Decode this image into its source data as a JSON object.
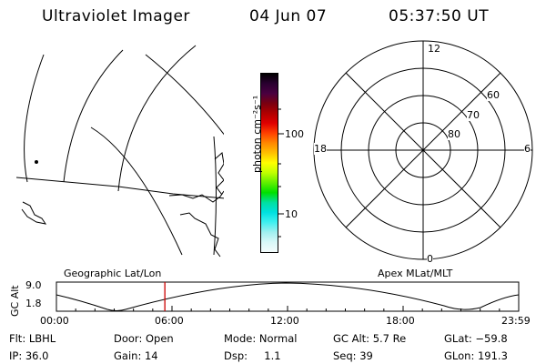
{
  "header": {
    "title": "Ultraviolet Imager",
    "date": "04 Jun 07",
    "time": "05:37:50 UT"
  },
  "colorbar": {
    "unit_label": "photon cm⁻²s⁻¹",
    "ticks": [
      "100",
      "10"
    ],
    "colors": [
      "#000000",
      "#2a0030",
      "#4a0040",
      "#7a0010",
      "#b00000",
      "#e00000",
      "#ff4000",
      "#ff8800",
      "#ffc000",
      "#ffff00",
      "#c0ff00",
      "#60f000",
      "#00e000",
      "#00e0a0",
      "#00e0e0",
      "#40f0f0",
      "#a0f0f0",
      "#d8f8f8",
      "#f4fcfc"
    ]
  },
  "polar_plot": {
    "labels_mlt": [
      "12",
      "18",
      "6",
      "0"
    ],
    "labels_lat": [
      "60",
      "70",
      "80"
    ]
  },
  "timeline": {
    "ylabel": "GC Alt",
    "yticks": [
      "9.0",
      "1.8"
    ],
    "left_title": "Geographic Lat/Lon",
    "right_title": "Apex MLat/MLT",
    "xticks": [
      "00:00",
      "06:00",
      "12:00",
      "18:00",
      "23:59"
    ],
    "marker_time_hours": 5.63,
    "marker_color": "#cc0000"
  },
  "info": {
    "filter": "Flt: LBHL",
    "ip": "IP: 36.0",
    "door": "Door: Open",
    "gain": "Gain: 14",
    "mode": "Mode: Normal",
    "dsp": "Dsp:     1.1",
    "gc_alt": "GC Alt: 5.7 Re",
    "seq": "Seq: 39",
    "glat": "GLat: −59.8",
    "glon": "GLon: 191.3"
  }
}
